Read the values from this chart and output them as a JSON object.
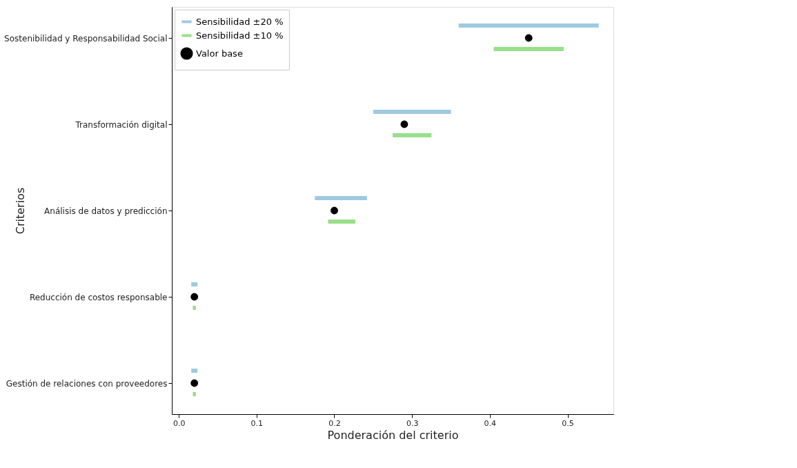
{
  "chart_data": {
    "type": "bar",
    "orientation": "horizontal",
    "xlabel": "Ponderación del criterio",
    "ylabel": "Criterios",
    "categories": [
      "Sostenibilidad y Responsabilidad Social",
      "Transformación digital",
      "Análisis de datos y predicción",
      "Reducción de costos responsable",
      "Gestión de relaciones con proveedores"
    ],
    "series": [
      {
        "name": "Sensibilidad ±20 %",
        "color": "#9ecae1",
        "base": [
          0.36,
          0.25,
          0.175,
          0.016,
          0.016
        ],
        "values": [
          0.18,
          0.1,
          0.067,
          0.008,
          0.008
        ]
      },
      {
        "name": "Sensibilidad ±10 %",
        "color": "#98df8a",
        "base": [
          0.405,
          0.275,
          0.192,
          0.018,
          0.018
        ],
        "values": [
          0.09,
          0.05,
          0.035,
          0.004,
          0.004
        ]
      },
      {
        "name": "Valor base",
        "type": "scatter",
        "color": "#000000",
        "values": [
          0.45,
          0.29,
          0.2,
          0.02,
          0.02
        ]
      }
    ],
    "xlim": [
      -0.009,
      0.559
    ],
    "xticks": [
      {
        "value": 0,
        "label": "0.0"
      },
      0.1,
      0.2,
      0.3,
      0.4,
      0.5
    ],
    "grid": false,
    "legend": "top left",
    "marker": "circle"
  }
}
